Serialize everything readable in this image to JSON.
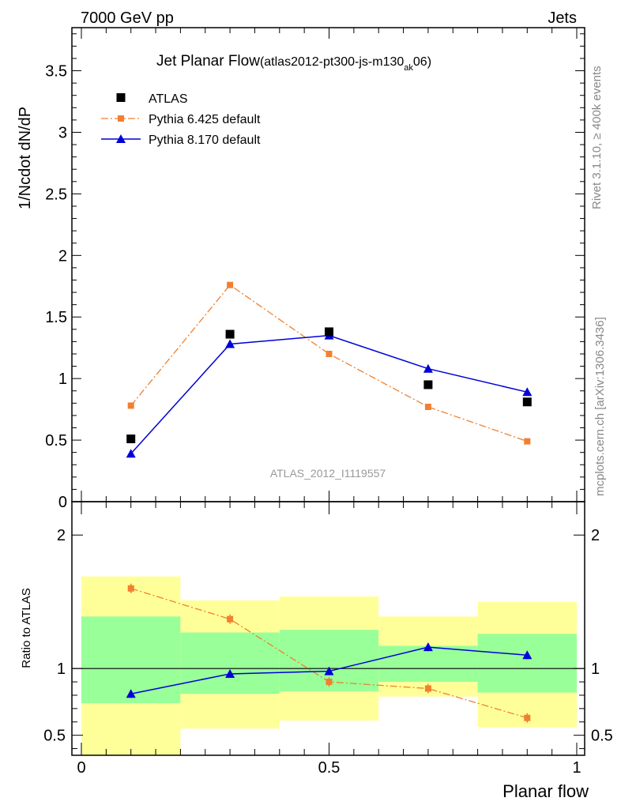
{
  "header": {
    "left_label": "7000 GeV pp",
    "right_label": "Jets"
  },
  "side_labels": {
    "rivet": "Rivet 3.1.10, ≥ 400k events",
    "mcplots": "mcplots.cern.ch [arXiv:1306.3436]"
  },
  "watermark": "ATLAS_2012_I1119557",
  "colors": {
    "atlas": "#000000",
    "pythia6": "#f08030",
    "pythia8": "#0000d8",
    "band_outer": "#ffff99",
    "band_inner": "#99ff99"
  },
  "chart_data": [
    {
      "type": "scatter",
      "panel": "main",
      "title_main": "Jet Planar Flow",
      "title_sub_pre": "(atlas2012-pt300-js-m130",
      "title_sub_subscript": "ak",
      "title_sub_post": "06)",
      "ylabel": "1/Ncdot dN/dP",
      "xlim": [
        0,
        1
      ],
      "ylim": [
        0,
        3.85
      ],
      "ytick_values": [
        0,
        0.5,
        1,
        1.5,
        2,
        2.5,
        3,
        3.5
      ],
      "ytick_labels": [
        "0",
        "0.5",
        "1",
        "1.5",
        "2",
        "2.5",
        "3",
        "3.5"
      ],
      "x": [
        0.1,
        0.3,
        0.5,
        0.7,
        0.9
      ],
      "series": [
        {
          "name": "ATLAS",
          "marker": "square",
          "values": [
            0.51,
            1.36,
            1.38,
            0.95,
            0.81
          ]
        },
        {
          "name": "Pythia 6.425 default",
          "marker": "small-square",
          "line": "dash-dot",
          "values": [
            0.78,
            1.76,
            1.2,
            0.77,
            0.49
          ]
        },
        {
          "name": "Pythia 8.170 default",
          "marker": "triangle",
          "line": "solid",
          "values": [
            0.39,
            1.28,
            1.35,
            1.08,
            0.89
          ]
        }
      ]
    },
    {
      "type": "line",
      "panel": "ratio",
      "ylabel": "Ratio to ATLAS",
      "xlabel": "Planar flow",
      "xlim": [
        0,
        1
      ],
      "ylim": [
        0.35,
        2.25
      ],
      "ytick_values": [
        0.5,
        1,
        2
      ],
      "ytick_labels": [
        "0.5",
        "1",
        "2"
      ],
      "xtick_values": [
        0,
        0.5,
        1
      ],
      "xtick_labels": [
        "0",
        "0.5",
        "1"
      ],
      "x": [
        0.1,
        0.3,
        0.5,
        0.7,
        0.9
      ],
      "bands": {
        "bin_edges": [
          0,
          0.2,
          0.4,
          0.6,
          0.8,
          1.0
        ],
        "outer_low": [
          0.35,
          0.55,
          0.61,
          0.79,
          0.56
        ],
        "outer_high": [
          1.69,
          1.51,
          1.54,
          1.39,
          1.5
        ],
        "inner_low": [
          0.74,
          0.81,
          0.83,
          0.9,
          0.82
        ],
        "inner_high": [
          1.39,
          1.27,
          1.29,
          1.17,
          1.26
        ]
      },
      "series": [
        {
          "name": "Pythia 6.425 default",
          "values": [
            1.6,
            1.37,
            0.9,
            0.85,
            0.63
          ]
        },
        {
          "name": "Pythia 8.170 default",
          "values": [
            0.81,
            0.96,
            0.98,
            1.16,
            1.1
          ]
        }
      ]
    }
  ]
}
